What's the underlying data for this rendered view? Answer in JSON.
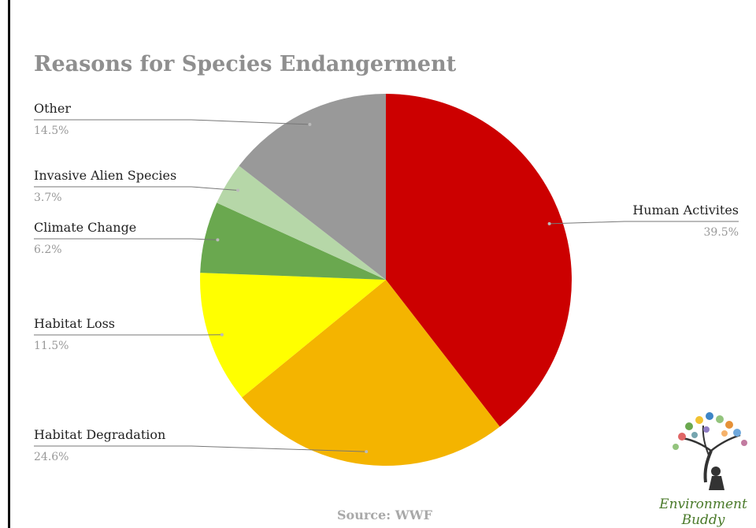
{
  "chart_data": {
    "type": "pie",
    "title": "Reasons for Species Endangerment",
    "source": "Source: WWF",
    "slices": [
      {
        "name": "Human Activites",
        "value": 39.5,
        "label": "39.5%",
        "color": "#cc0000"
      },
      {
        "name": "Habitat Degradation",
        "value": 24.6,
        "label": "24.6%",
        "color": "#f4b400"
      },
      {
        "name": "Habitat Loss",
        "value": 11.5,
        "label": "11.5%",
        "color": "#ffff00"
      },
      {
        "name": "Climate Change",
        "value": 6.2,
        "label": "6.2%",
        "color": "#6aa84f"
      },
      {
        "name": "Invasive Alien Species",
        "value": 3.7,
        "label": "3.7%",
        "color": "#b6d7a8"
      },
      {
        "name": "Other",
        "value": 14.5,
        "label": "14.5%",
        "color": "#999999"
      }
    ]
  },
  "logo": {
    "line1": "Environment",
    "line2": "Buddy"
  }
}
